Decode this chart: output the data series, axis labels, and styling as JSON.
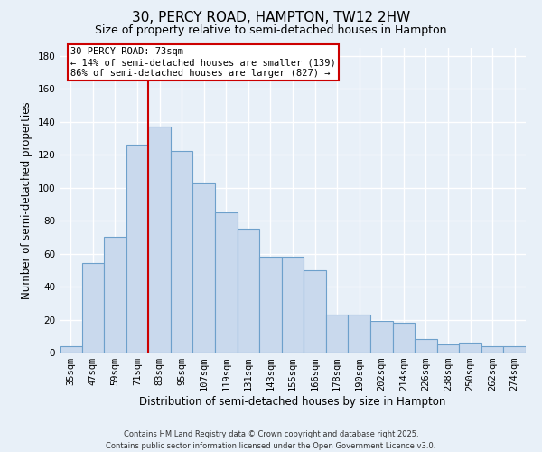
{
  "title": "30, PERCY ROAD, HAMPTON, TW12 2HW",
  "subtitle": "Size of property relative to semi-detached houses in Hampton",
  "xlabel": "Distribution of semi-detached houses by size in Hampton",
  "ylabel": "Number of semi-detached properties",
  "bar_labels": [
    "35sqm",
    "47sqm",
    "59sqm",
    "71sqm",
    "83sqm",
    "95sqm",
    "107sqm",
    "119sqm",
    "131sqm",
    "143sqm",
    "155sqm",
    "166sqm",
    "178sqm",
    "190sqm",
    "202sqm",
    "214sqm",
    "226sqm",
    "238sqm",
    "250sqm",
    "262sqm",
    "274sqm"
  ],
  "bar_values": [
    4,
    54,
    70,
    126,
    137,
    122,
    103,
    85,
    75,
    58,
    58,
    50,
    23,
    23,
    19,
    18,
    8,
    5,
    6,
    4,
    4
  ],
  "bar_color": "#c9d9ed",
  "bar_edge_color": "#6da0cb",
  "vline_x_index": 3,
  "vline_color": "#cc0000",
  "annotation_title": "30 PERCY ROAD: 73sqm",
  "annotation_line1": "← 14% of semi-detached houses are smaller (139)",
  "annotation_line2": "86% of semi-detached houses are larger (827) →",
  "annotation_box_color": "#ffffff",
  "annotation_box_edge": "#cc0000",
  "ylim": [
    0,
    185
  ],
  "yticks": [
    0,
    20,
    40,
    60,
    80,
    100,
    120,
    140,
    160,
    180
  ],
  "footer1": "Contains HM Land Registry data © Crown copyright and database right 2025.",
  "footer2": "Contains public sector information licensed under the Open Government Licence v3.0.",
  "bg_color": "#e8f0f8",
  "grid_color": "#ffffff",
  "title_fontsize": 11,
  "subtitle_fontsize": 9,
  "tick_fontsize": 7.5,
  "label_fontsize": 8.5,
  "footer_fontsize": 6,
  "ann_fontsize": 7.5
}
